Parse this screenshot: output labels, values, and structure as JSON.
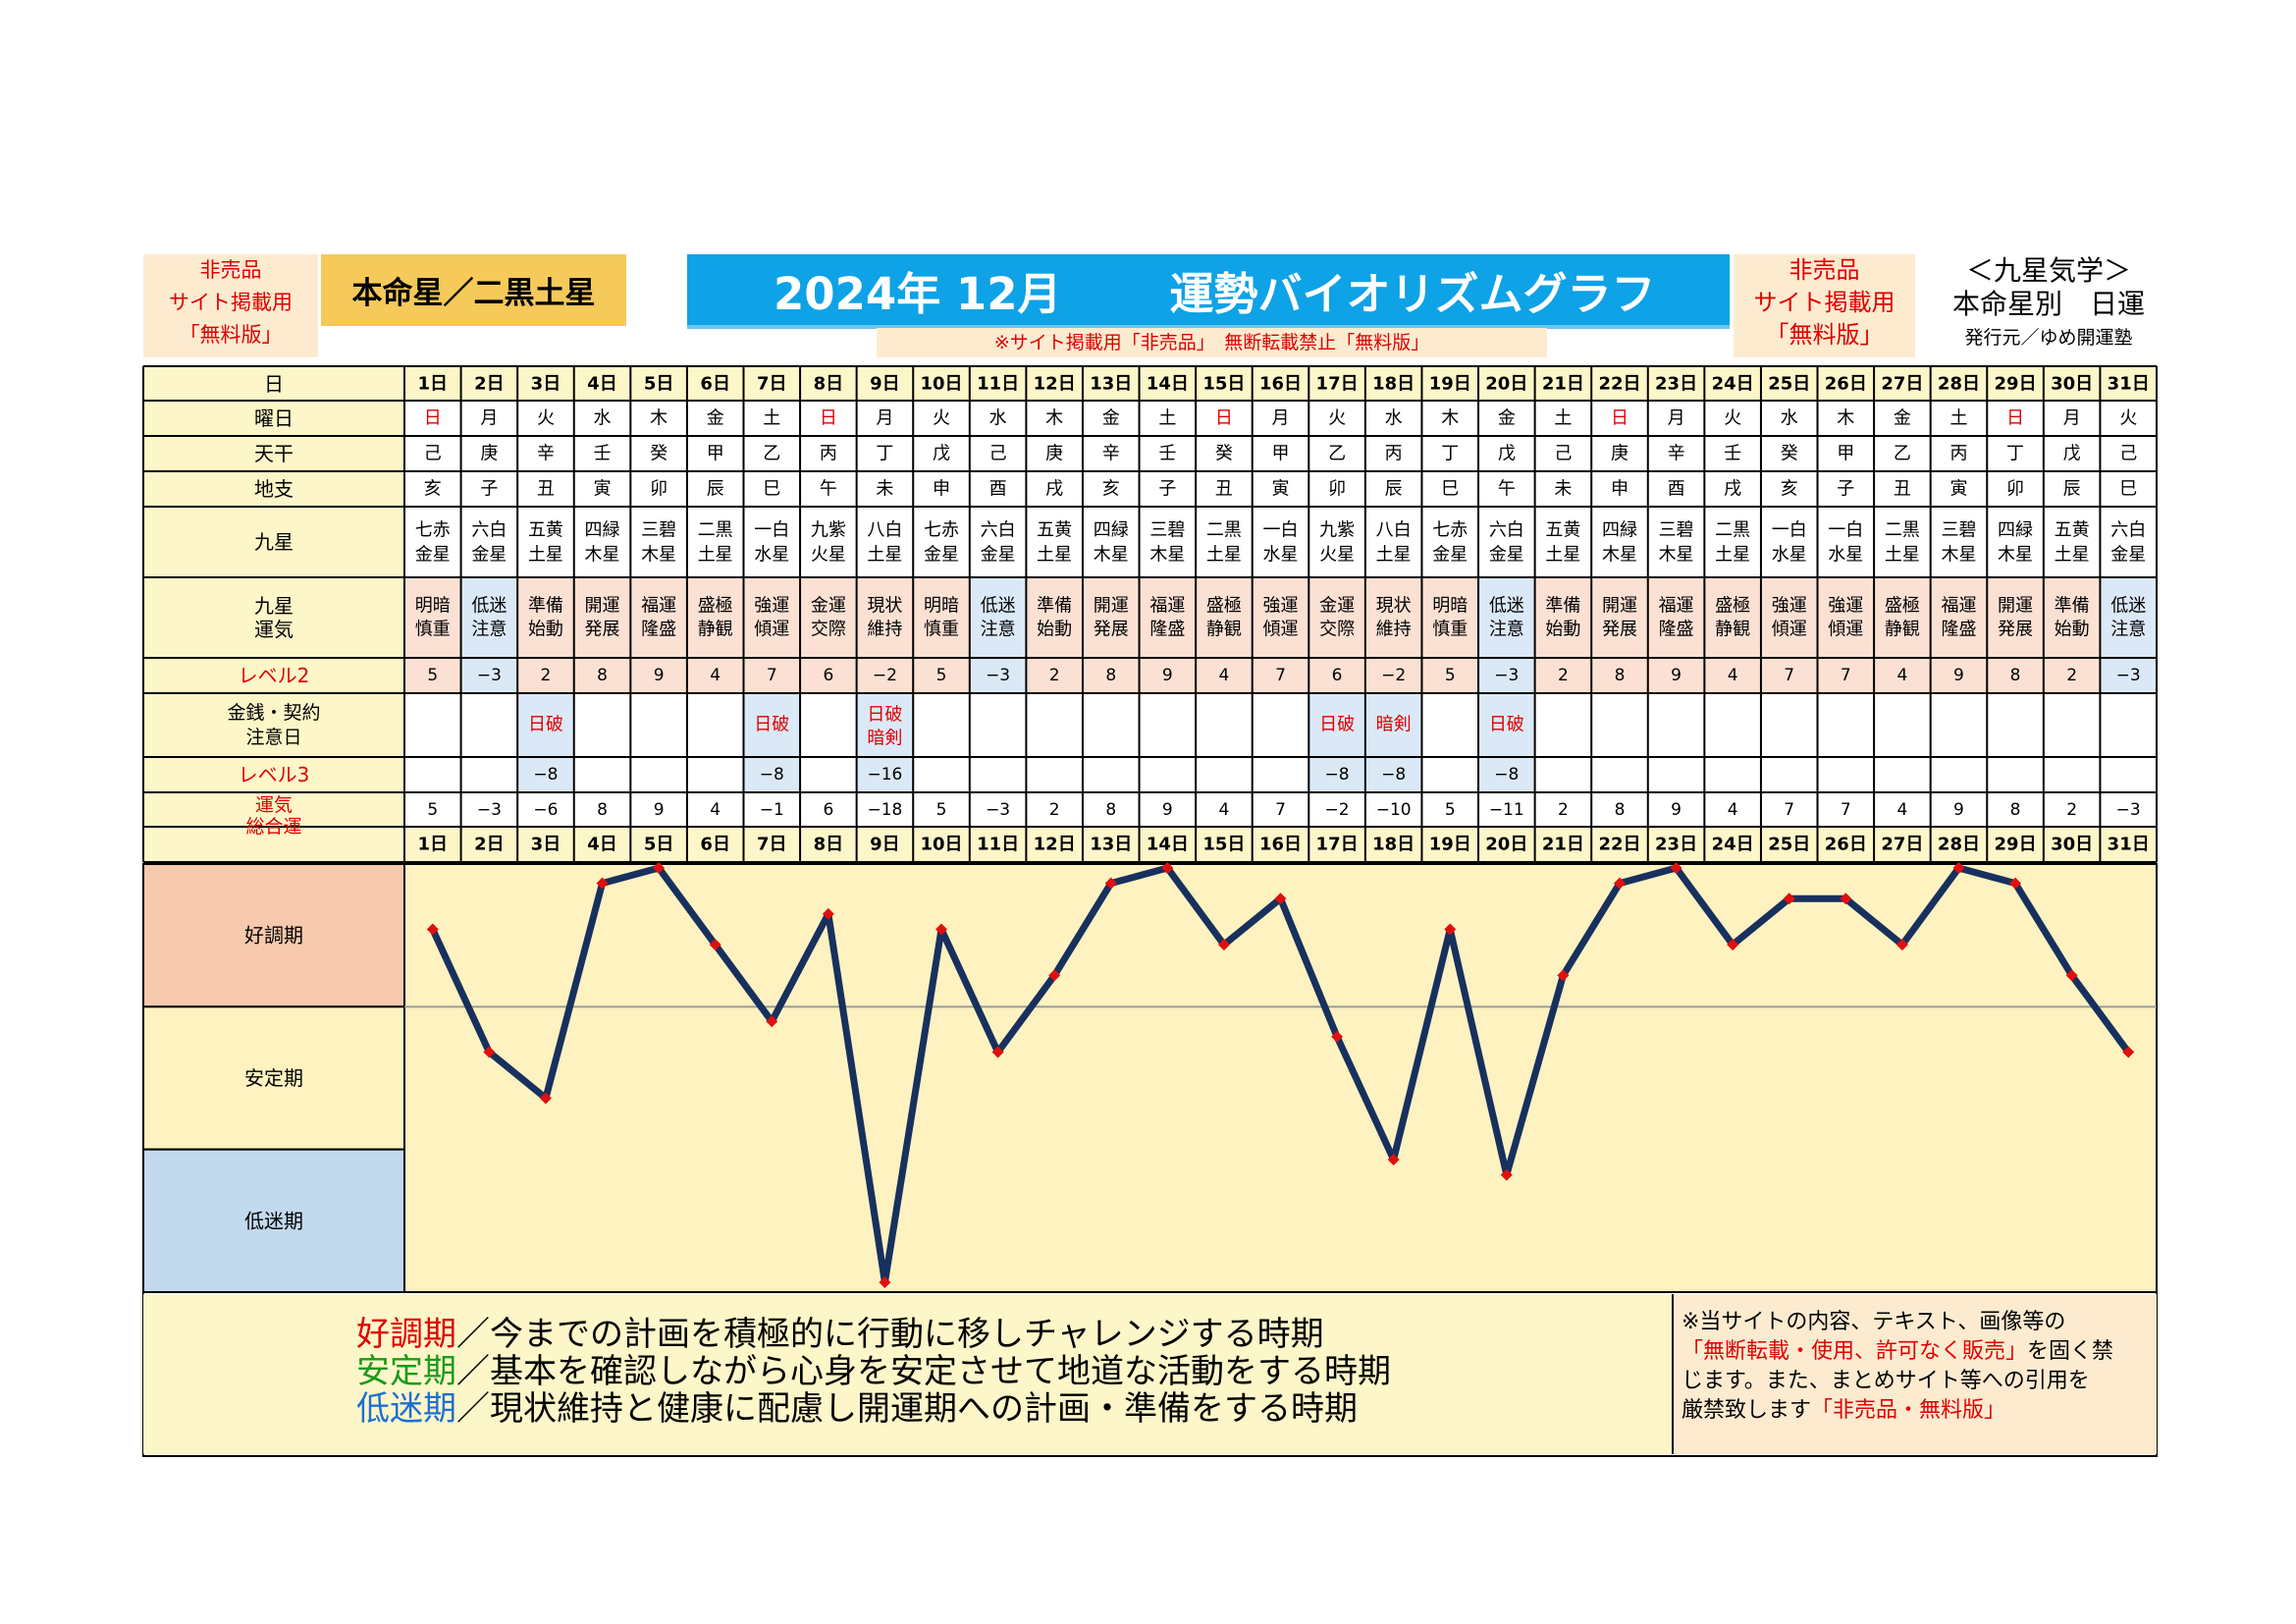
{
  "header": {
    "left_lines": [
      "非売品",
      "サイト掲載用",
      "「無料版」"
    ],
    "honmeisei": "本命星／二黒土星",
    "year_month": "2024年 12月",
    "title": "運勢バイオリズムグラフ",
    "notice": "※サイト掲載用「非売品」　無断転載禁止「無料版」",
    "right_red_lines": [
      "非売品",
      "サイト掲載用",
      "「無料版」"
    ],
    "right_cap1": "＜九星気学＞",
    "right_cap2": "本命星別　日運",
    "right_cap3": "発行元／ゆめ開運塾"
  },
  "row_labels": {
    "day": "日",
    "weekday": "曜日",
    "tenkan": "天干",
    "chishi": "地支",
    "kyusei": "九星",
    "kyusei_unki": [
      "九星",
      "運気"
    ],
    "level2": "レベル2",
    "kinsen": [
      "金銭・契約",
      "注意日"
    ],
    "level3": "レベル3",
    "sogo": [
      "運気",
      "総合運"
    ]
  },
  "days": [
    "1日",
    "2日",
    "3日",
    "4日",
    "5日",
    "6日",
    "7日",
    "8日",
    "9日",
    "10日",
    "11日",
    "12日",
    "13日",
    "14日",
    "15日",
    "16日",
    "17日",
    "18日",
    "19日",
    "20日",
    "21日",
    "22日",
    "23日",
    "24日",
    "25日",
    "26日",
    "27日",
    "28日",
    "29日",
    "30日",
    "31日"
  ],
  "weekdays": [
    "日",
    "月",
    "火",
    "水",
    "木",
    "金",
    "土",
    "日",
    "月",
    "火",
    "水",
    "木",
    "金",
    "土",
    "日",
    "月",
    "火",
    "水",
    "木",
    "金",
    "土",
    "日",
    "月",
    "火",
    "水",
    "木",
    "金",
    "土",
    "日",
    "月",
    "火"
  ],
  "tenkan": [
    "己",
    "庚",
    "辛",
    "壬",
    "癸",
    "甲",
    "乙",
    "丙",
    "丁",
    "戊",
    "己",
    "庚",
    "辛",
    "壬",
    "癸",
    "甲",
    "乙",
    "丙",
    "丁",
    "戊",
    "己",
    "庚",
    "辛",
    "壬",
    "癸",
    "甲",
    "乙",
    "丙",
    "丁",
    "戊",
    "己"
  ],
  "chishi": [
    "亥",
    "子",
    "丑",
    "寅",
    "卯",
    "辰",
    "巳",
    "午",
    "未",
    "申",
    "酉",
    "戌",
    "亥",
    "子",
    "丑",
    "寅",
    "卯",
    "辰",
    "巳",
    "午",
    "未",
    "申",
    "酉",
    "戌",
    "亥",
    "子",
    "丑",
    "寅",
    "卯",
    "辰",
    "巳"
  ],
  "kyusei": [
    [
      "七赤",
      "金星"
    ],
    [
      "六白",
      "金星"
    ],
    [
      "五黄",
      "土星"
    ],
    [
      "四緑",
      "木星"
    ],
    [
      "三碧",
      "木星"
    ],
    [
      "二黒",
      "土星"
    ],
    [
      "一白",
      "水星"
    ],
    [
      "九紫",
      "火星"
    ],
    [
      "八白",
      "土星"
    ],
    [
      "七赤",
      "金星"
    ],
    [
      "六白",
      "金星"
    ],
    [
      "五黄",
      "土星"
    ],
    [
      "四緑",
      "木星"
    ],
    [
      "三碧",
      "木星"
    ],
    [
      "二黒",
      "土星"
    ],
    [
      "一白",
      "水星"
    ],
    [
      "九紫",
      "火星"
    ],
    [
      "八白",
      "土星"
    ],
    [
      "七赤",
      "金星"
    ],
    [
      "六白",
      "金星"
    ],
    [
      "五黄",
      "土星"
    ],
    [
      "四緑",
      "木星"
    ],
    [
      "三碧",
      "木星"
    ],
    [
      "二黒",
      "土星"
    ],
    [
      "一白",
      "水星"
    ],
    [
      "一白",
      "水星"
    ],
    [
      "二黒",
      "土星"
    ],
    [
      "三碧",
      "木星"
    ],
    [
      "四緑",
      "木星"
    ],
    [
      "五黄",
      "土星"
    ],
    [
      "六白",
      "金星"
    ]
  ],
  "unki": [
    [
      "明暗",
      "慎重"
    ],
    [
      "低迷",
      "注意"
    ],
    [
      "準備",
      "始動"
    ],
    [
      "開運",
      "発展"
    ],
    [
      "福運",
      "隆盛"
    ],
    [
      "盛極",
      "静観"
    ],
    [
      "強運",
      "傾運"
    ],
    [
      "金運",
      "交際"
    ],
    [
      "現状",
      "維持"
    ],
    [
      "明暗",
      "慎重"
    ],
    [
      "低迷",
      "注意"
    ],
    [
      "準備",
      "始動"
    ],
    [
      "開運",
      "発展"
    ],
    [
      "福運",
      "隆盛"
    ],
    [
      "盛極",
      "静観"
    ],
    [
      "強運",
      "傾運"
    ],
    [
      "金運",
      "交際"
    ],
    [
      "現状",
      "維持"
    ],
    [
      "明暗",
      "慎重"
    ],
    [
      "低迷",
      "注意"
    ],
    [
      "準備",
      "始動"
    ],
    [
      "開運",
      "発展"
    ],
    [
      "福運",
      "隆盛"
    ],
    [
      "盛極",
      "静観"
    ],
    [
      "強運",
      "傾運"
    ],
    [
      "強運",
      "傾運"
    ],
    [
      "盛極",
      "静観"
    ],
    [
      "福運",
      "隆盛"
    ],
    [
      "開運",
      "発展"
    ],
    [
      "準備",
      "始動"
    ],
    [
      "低迷",
      "注意"
    ]
  ],
  "level2": [
    "5",
    "−3",
    "2",
    "8",
    "9",
    "4",
    "7",
    "6",
    "−2",
    "5",
    "−3",
    "2",
    "8",
    "9",
    "4",
    "7",
    "6",
    "−2",
    "5",
    "−3",
    "2",
    "8",
    "9",
    "4",
    "7",
    "7",
    "4",
    "9",
    "8",
    "2",
    "−3"
  ],
  "kinsen": [
    [],
    [],
    [
      "日破"
    ],
    [],
    [],
    [],
    [
      "日破"
    ],
    [],
    [
      "日破",
      "暗剣"
    ],
    [],
    [],
    [],
    [],
    [],
    [],
    [],
    [
      "日破"
    ],
    [
      "暗剣"
    ],
    [],
    [
      "日破"
    ],
    [],
    [],
    [],
    [],
    [],
    [],
    [],
    [],
    [],
    [],
    []
  ],
  "level3": [
    "",
    "",
    "−8",
    "",
    "",
    "",
    "−8",
    "",
    "−16",
    "",
    "",
    "",
    "",
    "",
    "",
    "",
    "−8",
    "−8",
    "",
    "−8",
    "",
    "",
    "",
    "",
    "",
    "",
    "",
    "",
    "",
    "",
    ""
  ],
  "sogo_text": [
    "5",
    "−3",
    "−6",
    "8",
    "9",
    "4",
    "−1",
    "6",
    "−18",
    "5",
    "−3",
    "2",
    "8",
    "9",
    "4",
    "7",
    "−2",
    "−10",
    "5",
    "−11",
    "2",
    "8",
    "9",
    "4",
    "7",
    "7",
    "4",
    "9",
    "8",
    "2",
    "−3"
  ],
  "bands": [
    "好調期",
    "安定期",
    "低迷期"
  ],
  "chart_data": {
    "type": "line",
    "x": [
      "1日",
      "2日",
      "3日",
      "4日",
      "5日",
      "6日",
      "7日",
      "8日",
      "9日",
      "10日",
      "11日",
      "12日",
      "13日",
      "14日",
      "15日",
      "16日",
      "17日",
      "18日",
      "19日",
      "20日",
      "21日",
      "22日",
      "23日",
      "24日",
      "25日",
      "26日",
      "27日",
      "28日",
      "29日",
      "30日",
      "31日"
    ],
    "series": [
      {
        "values": [
          5,
          -3,
          -6,
          8,
          9,
          4,
          -1,
          6,
          -18,
          5,
          -3,
          2,
          8,
          9,
          4,
          7,
          -2,
          -10,
          5,
          -11,
          2,
          8,
          9,
          4,
          7,
          7,
          4,
          9,
          8,
          2,
          -3
        ]
      }
    ],
    "ylim": [
      -18,
      9
    ],
    "bands": [
      "好調期",
      "安定期",
      "低迷期"
    ],
    "line_color": "#17305e",
    "marker_color": "#e01010"
  },
  "footer": {
    "l1_key": "好調期",
    "l1_text": "／今までの計画を積極的に行動に移しチャレンジする時期",
    "l2_key": "安定期",
    "l2_text": "／基本を確認しながら心身を安定させて地道な活動をする時期",
    "l3_key": "低迷期",
    "l3_text": "／現状維持と健康に配慮し開運期への計画・準備をする時期",
    "right_1": "※当サイトの内容、テキスト、画像等の",
    "right_2_red": "「無断転載・使用、許可なく販売」",
    "right_2_tail": "を固く禁",
    "right_3": "じます。また、まとめサイト等への引用を",
    "right_4": "厳禁致します",
    "right_4_red": "「非売品・無料版」"
  },
  "colors": {
    "pink": "#fbe1d3",
    "blue": "#dbe9f7",
    "yellow": "#fdf6c9",
    "red": "#e00000",
    "good_band": "#f7c9ad",
    "stable_band": "#fdf2c0",
    "low_band": "#c3d9ee"
  }
}
